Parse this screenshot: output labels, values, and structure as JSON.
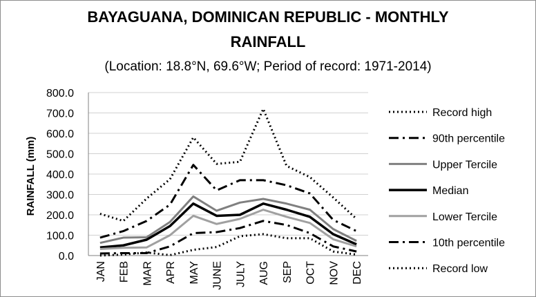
{
  "chart_data": {
    "type": "line",
    "title_line1": "BAYAGUANA, DOMINICAN REPUBLIC - MONTHLY",
    "title_line2": "RAINFALL",
    "subtitle": "(Location: 18.8°N, 69.6°W; Period of record: 1971-2014)",
    "ylabel": "RAINFALL (mm)",
    "xlabel": "",
    "ylim": [
      0,
      800
    ],
    "yticks": [
      "0.0",
      "100.0",
      "200.0",
      "300.0",
      "400.0",
      "500.0",
      "600.0",
      "700.0",
      "800.0"
    ],
    "grid": "horizontal",
    "legend_position": "right",
    "categories": [
      "JAN",
      "FEB",
      "MAR",
      "APR",
      "MAY",
      "JUNE",
      "JULY",
      "AUG",
      "SEP",
      "OCT",
      "NOV",
      "DEC"
    ],
    "series": [
      {
        "name": "Record high",
        "color": "#000000",
        "style": "dotted",
        "values": [
          205,
          170,
          280,
          375,
          580,
          450,
          460,
          720,
          440,
          385,
          285,
          180
        ]
      },
      {
        "name": "90th percentile",
        "color": "#000000",
        "style": "dashdot",
        "values": [
          88,
          120,
          170,
          250,
          445,
          320,
          370,
          370,
          345,
          305,
          175,
          120
        ]
      },
      {
        "name": "Upper Tercile",
        "color": "#808080",
        "style": "solid",
        "values": [
          62,
          88,
          90,
          165,
          290,
          220,
          260,
          278,
          255,
          225,
          130,
          72
        ]
      },
      {
        "name": "Median",
        "color": "#000000",
        "style": "solid",
        "values": [
          40,
          50,
          78,
          145,
          255,
          195,
          200,
          255,
          225,
          190,
          105,
          55
        ]
      },
      {
        "name": "Lower Tercile",
        "color": "#a0a0a0",
        "style": "solid",
        "values": [
          32,
          38,
          40,
          100,
          195,
          155,
          180,
          225,
          190,
          160,
          80,
          45
        ]
      },
      {
        "name": "10th percentile",
        "color": "#000000",
        "style": "dashdot",
        "values": [
          10,
          12,
          12,
          45,
          110,
          115,
          135,
          170,
          150,
          110,
          45,
          20
        ]
      },
      {
        "name": "Record low",
        "color": "#000000",
        "style": "dotted",
        "values": [
          0,
          5,
          15,
          2,
          28,
          42,
          95,
          105,
          85,
          85,
          20,
          5
        ]
      }
    ]
  }
}
